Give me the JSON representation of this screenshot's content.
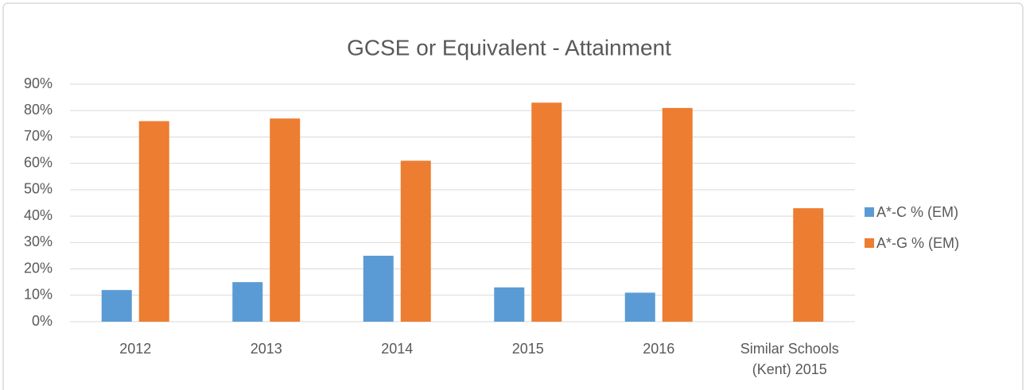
{
  "chart_data": {
    "type": "bar",
    "title": "GCSE or Equivalent - Attainment",
    "categories": [
      "2012",
      "2013",
      "2014",
      "2015",
      "2016",
      "Similar Schools (Kent) 2015"
    ],
    "series": [
      {
        "name": "A*-C % (EM)",
        "color": "#5b9bd5",
        "values": [
          12,
          15,
          25,
          13,
          11,
          null
        ]
      },
      {
        "name": "A*-G % (EM)",
        "color": "#ed7d31",
        "values": [
          76,
          77,
          61,
          83,
          81,
          43
        ]
      }
    ],
    "ylim": [
      0,
      90
    ],
    "yticks": [
      {
        "value": 0,
        "label": "0%"
      },
      {
        "value": 10,
        "label": "10%"
      },
      {
        "value": 20,
        "label": "20%"
      },
      {
        "value": 30,
        "label": "30%"
      },
      {
        "value": 40,
        "label": "40%"
      },
      {
        "value": 50,
        "label": "50%"
      },
      {
        "value": 60,
        "label": "60%"
      },
      {
        "value": 70,
        "label": "70%"
      },
      {
        "value": 80,
        "label": "80%"
      },
      {
        "value": 90,
        "label": "90%"
      }
    ],
    "grid": true,
    "legend": "right"
  }
}
